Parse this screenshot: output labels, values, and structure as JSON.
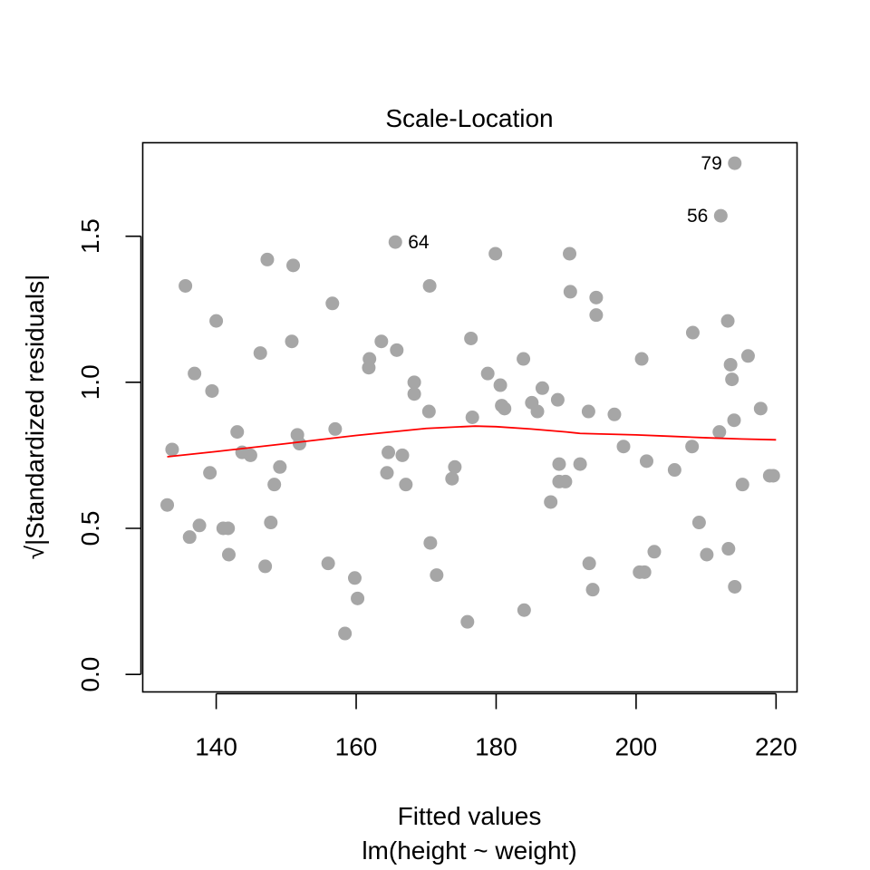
{
  "chart_data": {
    "type": "scatter",
    "title": "Scale-Location",
    "xlabel": "Fitted values",
    "xlabel_sub": "lm(height ~ weight)",
    "ylabel": "√|Standardized residuals|",
    "xlim": [
      129.5,
      223
    ],
    "ylim": [
      -0.06,
      1.82
    ],
    "x_ticks": [
      140,
      160,
      180,
      200,
      220
    ],
    "x_tick_labels": [
      "140",
      "160",
      "180",
      "200",
      "220"
    ],
    "y_ticks": [
      0.0,
      0.5,
      1.0,
      1.5
    ],
    "y_tick_labels": [
      "0.0",
      "0.5",
      "1.0",
      "1.5"
    ],
    "grid": false,
    "legend": "none",
    "colors": {
      "points": "#a6a6a6",
      "smoother": "#ff0000",
      "frame": "#000000"
    },
    "points": [
      {
        "x": 133.0,
        "y": 0.58
      },
      {
        "x": 133.7,
        "y": 0.77
      },
      {
        "x": 135.6,
        "y": 1.33
      },
      {
        "x": 136.2,
        "y": 0.47
      },
      {
        "x": 136.9,
        "y": 1.03
      },
      {
        "x": 137.6,
        "y": 0.51
      },
      {
        "x": 139.1,
        "y": 0.69
      },
      {
        "x": 139.4,
        "y": 0.97
      },
      {
        "x": 140.0,
        "y": 1.21
      },
      {
        "x": 141.0,
        "y": 0.5
      },
      {
        "x": 141.7,
        "y": 0.5
      },
      {
        "x": 141.8,
        "y": 0.41
      },
      {
        "x": 143.0,
        "y": 0.83
      },
      {
        "x": 143.7,
        "y": 0.76
      },
      {
        "x": 144.9,
        "y": 0.75
      },
      {
        "x": 146.3,
        "y": 1.1
      },
      {
        "x": 147.0,
        "y": 0.37
      },
      {
        "x": 147.3,
        "y": 1.42
      },
      {
        "x": 147.8,
        "y": 0.52
      },
      {
        "x": 148.3,
        "y": 0.65
      },
      {
        "x": 149.1,
        "y": 0.71
      },
      {
        "x": 150.8,
        "y": 1.14
      },
      {
        "x": 151.0,
        "y": 1.4
      },
      {
        "x": 151.6,
        "y": 0.82
      },
      {
        "x": 151.9,
        "y": 0.79
      },
      {
        "x": 156.0,
        "y": 0.38
      },
      {
        "x": 156.6,
        "y": 1.27
      },
      {
        "x": 157.0,
        "y": 0.84
      },
      {
        "x": 158.4,
        "y": 0.14
      },
      {
        "x": 159.8,
        "y": 0.33
      },
      {
        "x": 160.2,
        "y": 0.26
      },
      {
        "x": 161.8,
        "y": 1.05
      },
      {
        "x": 161.9,
        "y": 1.08
      },
      {
        "x": 163.6,
        "y": 1.14
      },
      {
        "x": 164.6,
        "y": 0.76
      },
      {
        "x": 164.4,
        "y": 0.69
      },
      {
        "x": 165.6,
        "y": 1.48,
        "label": "64"
      },
      {
        "x": 165.8,
        "y": 1.11
      },
      {
        "x": 166.6,
        "y": 0.75
      },
      {
        "x": 167.1,
        "y": 0.65
      },
      {
        "x": 168.3,
        "y": 1.0
      },
      {
        "x": 168.3,
        "y": 0.96
      },
      {
        "x": 170.4,
        "y": 0.9
      },
      {
        "x": 170.5,
        "y": 1.33
      },
      {
        "x": 170.6,
        "y": 0.45
      },
      {
        "x": 171.5,
        "y": 0.34
      },
      {
        "x": 173.7,
        "y": 0.67
      },
      {
        "x": 174.1,
        "y": 0.71
      },
      {
        "x": 175.9,
        "y": 0.18
      },
      {
        "x": 176.4,
        "y": 1.15
      },
      {
        "x": 176.6,
        "y": 0.88
      },
      {
        "x": 178.8,
        "y": 1.03
      },
      {
        "x": 179.9,
        "y": 1.44
      },
      {
        "x": 180.6,
        "y": 0.99
      },
      {
        "x": 180.8,
        "y": 0.92
      },
      {
        "x": 181.2,
        "y": 0.91
      },
      {
        "x": 183.9,
        "y": 1.08
      },
      {
        "x": 184.0,
        "y": 0.22
      },
      {
        "x": 185.1,
        "y": 0.93
      },
      {
        "x": 185.9,
        "y": 0.9
      },
      {
        "x": 186.6,
        "y": 0.98
      },
      {
        "x": 187.8,
        "y": 0.59
      },
      {
        "x": 188.8,
        "y": 0.94
      },
      {
        "x": 189.0,
        "y": 0.72
      },
      {
        "x": 189.0,
        "y": 0.66
      },
      {
        "x": 189.9,
        "y": 0.66
      },
      {
        "x": 190.5,
        "y": 1.44
      },
      {
        "x": 190.6,
        "y": 1.31
      },
      {
        "x": 192.0,
        "y": 0.72
      },
      {
        "x": 193.2,
        "y": 0.9
      },
      {
        "x": 193.3,
        "y": 0.38
      },
      {
        "x": 193.8,
        "y": 0.29
      },
      {
        "x": 194.3,
        "y": 1.29
      },
      {
        "x": 194.3,
        "y": 1.23
      },
      {
        "x": 196.9,
        "y": 0.89
      },
      {
        "x": 198.2,
        "y": 0.78
      },
      {
        "x": 200.5,
        "y": 0.35
      },
      {
        "x": 200.8,
        "y": 1.08
      },
      {
        "x": 201.2,
        "y": 0.35
      },
      {
        "x": 201.5,
        "y": 0.73
      },
      {
        "x": 202.6,
        "y": 0.42
      },
      {
        "x": 205.5,
        "y": 0.7
      },
      {
        "x": 208.0,
        "y": 0.78
      },
      {
        "x": 208.1,
        "y": 1.17
      },
      {
        "x": 209.0,
        "y": 0.52
      },
      {
        "x": 210.1,
        "y": 0.41
      },
      {
        "x": 211.9,
        "y": 0.83
      },
      {
        "x": 212.1,
        "y": 1.57,
        "label": "56"
      },
      {
        "x": 213.1,
        "y": 1.21
      },
      {
        "x": 213.2,
        "y": 0.43
      },
      {
        "x": 213.5,
        "y": 1.06
      },
      {
        "x": 213.7,
        "y": 1.01
      },
      {
        "x": 214.0,
        "y": 0.87
      },
      {
        "x": 214.1,
        "y": 0.3
      },
      {
        "x": 214.1,
        "y": 1.75,
        "label": "79"
      },
      {
        "x": 215.2,
        "y": 0.65
      },
      {
        "x": 216.0,
        "y": 1.09
      },
      {
        "x": 217.8,
        "y": 0.91
      },
      {
        "x": 219.1,
        "y": 0.68
      },
      {
        "x": 219.6,
        "y": 0.68
      }
    ],
    "smoother": {
      "x": [
        133,
        140,
        150,
        160,
        170,
        177,
        180,
        185,
        190,
        192,
        195,
        200,
        205,
        210,
        215,
        220
      ],
      "y": [
        0.745,
        0.763,
        0.79,
        0.818,
        0.842,
        0.85,
        0.848,
        0.84,
        0.83,
        0.825,
        0.823,
        0.82,
        0.815,
        0.81,
        0.806,
        0.803
      ]
    }
  }
}
